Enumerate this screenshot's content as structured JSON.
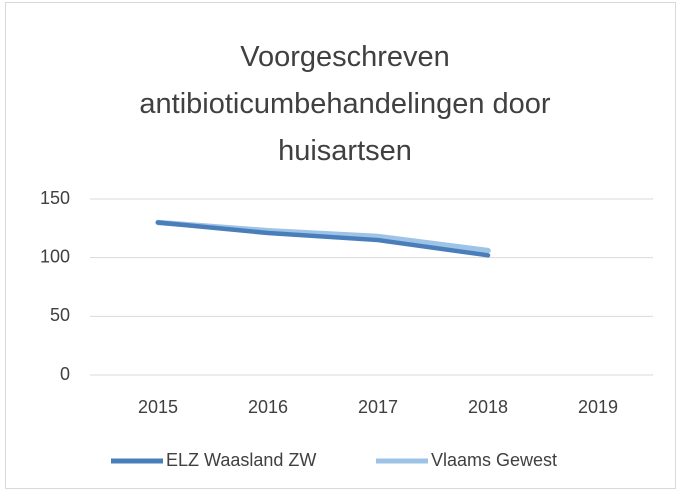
{
  "chart_data": {
    "type": "line",
    "title": "Voorgeschreven antibioticumbehandelingen door huisartsen",
    "categories": [
      "2015",
      "2016",
      "2017",
      "2018",
      "2019"
    ],
    "series": [
      {
        "name": "ELZ Waasland ZW",
        "color": "#4a7ebb",
        "values": [
          130,
          121,
          115,
          102,
          null
        ]
      },
      {
        "name": "Vlaams Gewest",
        "color": "#9dc3e6",
        "values": [
          130,
          123,
          118,
          106,
          null
        ]
      }
    ],
    "ylim": [
      0,
      150
    ],
    "yticks": [
      0,
      50,
      100,
      150
    ],
    "grid": true,
    "legend": "bottom"
  }
}
